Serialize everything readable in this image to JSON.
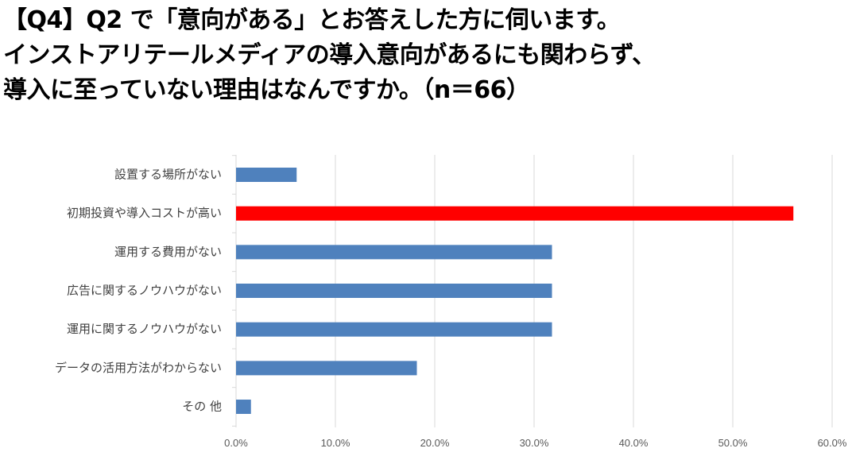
{
  "title_lines": [
    "【Q4】Q2 で「意向がある」とお答えした方に伺います。",
    "インストアリテールメディアの導入意向があるにも関わらず、",
    "導入に至っていない理由はなんですか。（n＝66）"
  ],
  "chart_data": {
    "type": "bar",
    "orientation": "horizontal",
    "title": "【Q4】Q2 で「意向がある」とお答えした方に伺います。インストアリテールメディアの導入意向があるにも関わらず、導入に至っていない理由はなんですか。（n＝66）",
    "categories": [
      "設置する場所がない",
      "初期投資や導入コストが高い",
      "運用する費用がない",
      "広告に関するノウハウがない",
      "運用に関するノウハウがない",
      "データの活用方法がわからない",
      "その 他"
    ],
    "values": [
      6.1,
      56.1,
      31.8,
      31.8,
      31.8,
      18.2,
      1.5
    ],
    "bar_colors": [
      "#4f81bd",
      "#ff0000",
      "#4f81bd",
      "#4f81bd",
      "#4f81bd",
      "#4f81bd",
      "#4f81bd"
    ],
    "xlim": [
      0,
      60
    ],
    "xticks": [
      0,
      10,
      20,
      30,
      40,
      50,
      60
    ],
    "xtick_labels": [
      "0.0%",
      "10.0%",
      "20.0%",
      "30.0%",
      "40.0%",
      "50.0%",
      "60.0%"
    ],
    "grid": true,
    "legend": "none",
    "xlabel": "",
    "ylabel": ""
  }
}
